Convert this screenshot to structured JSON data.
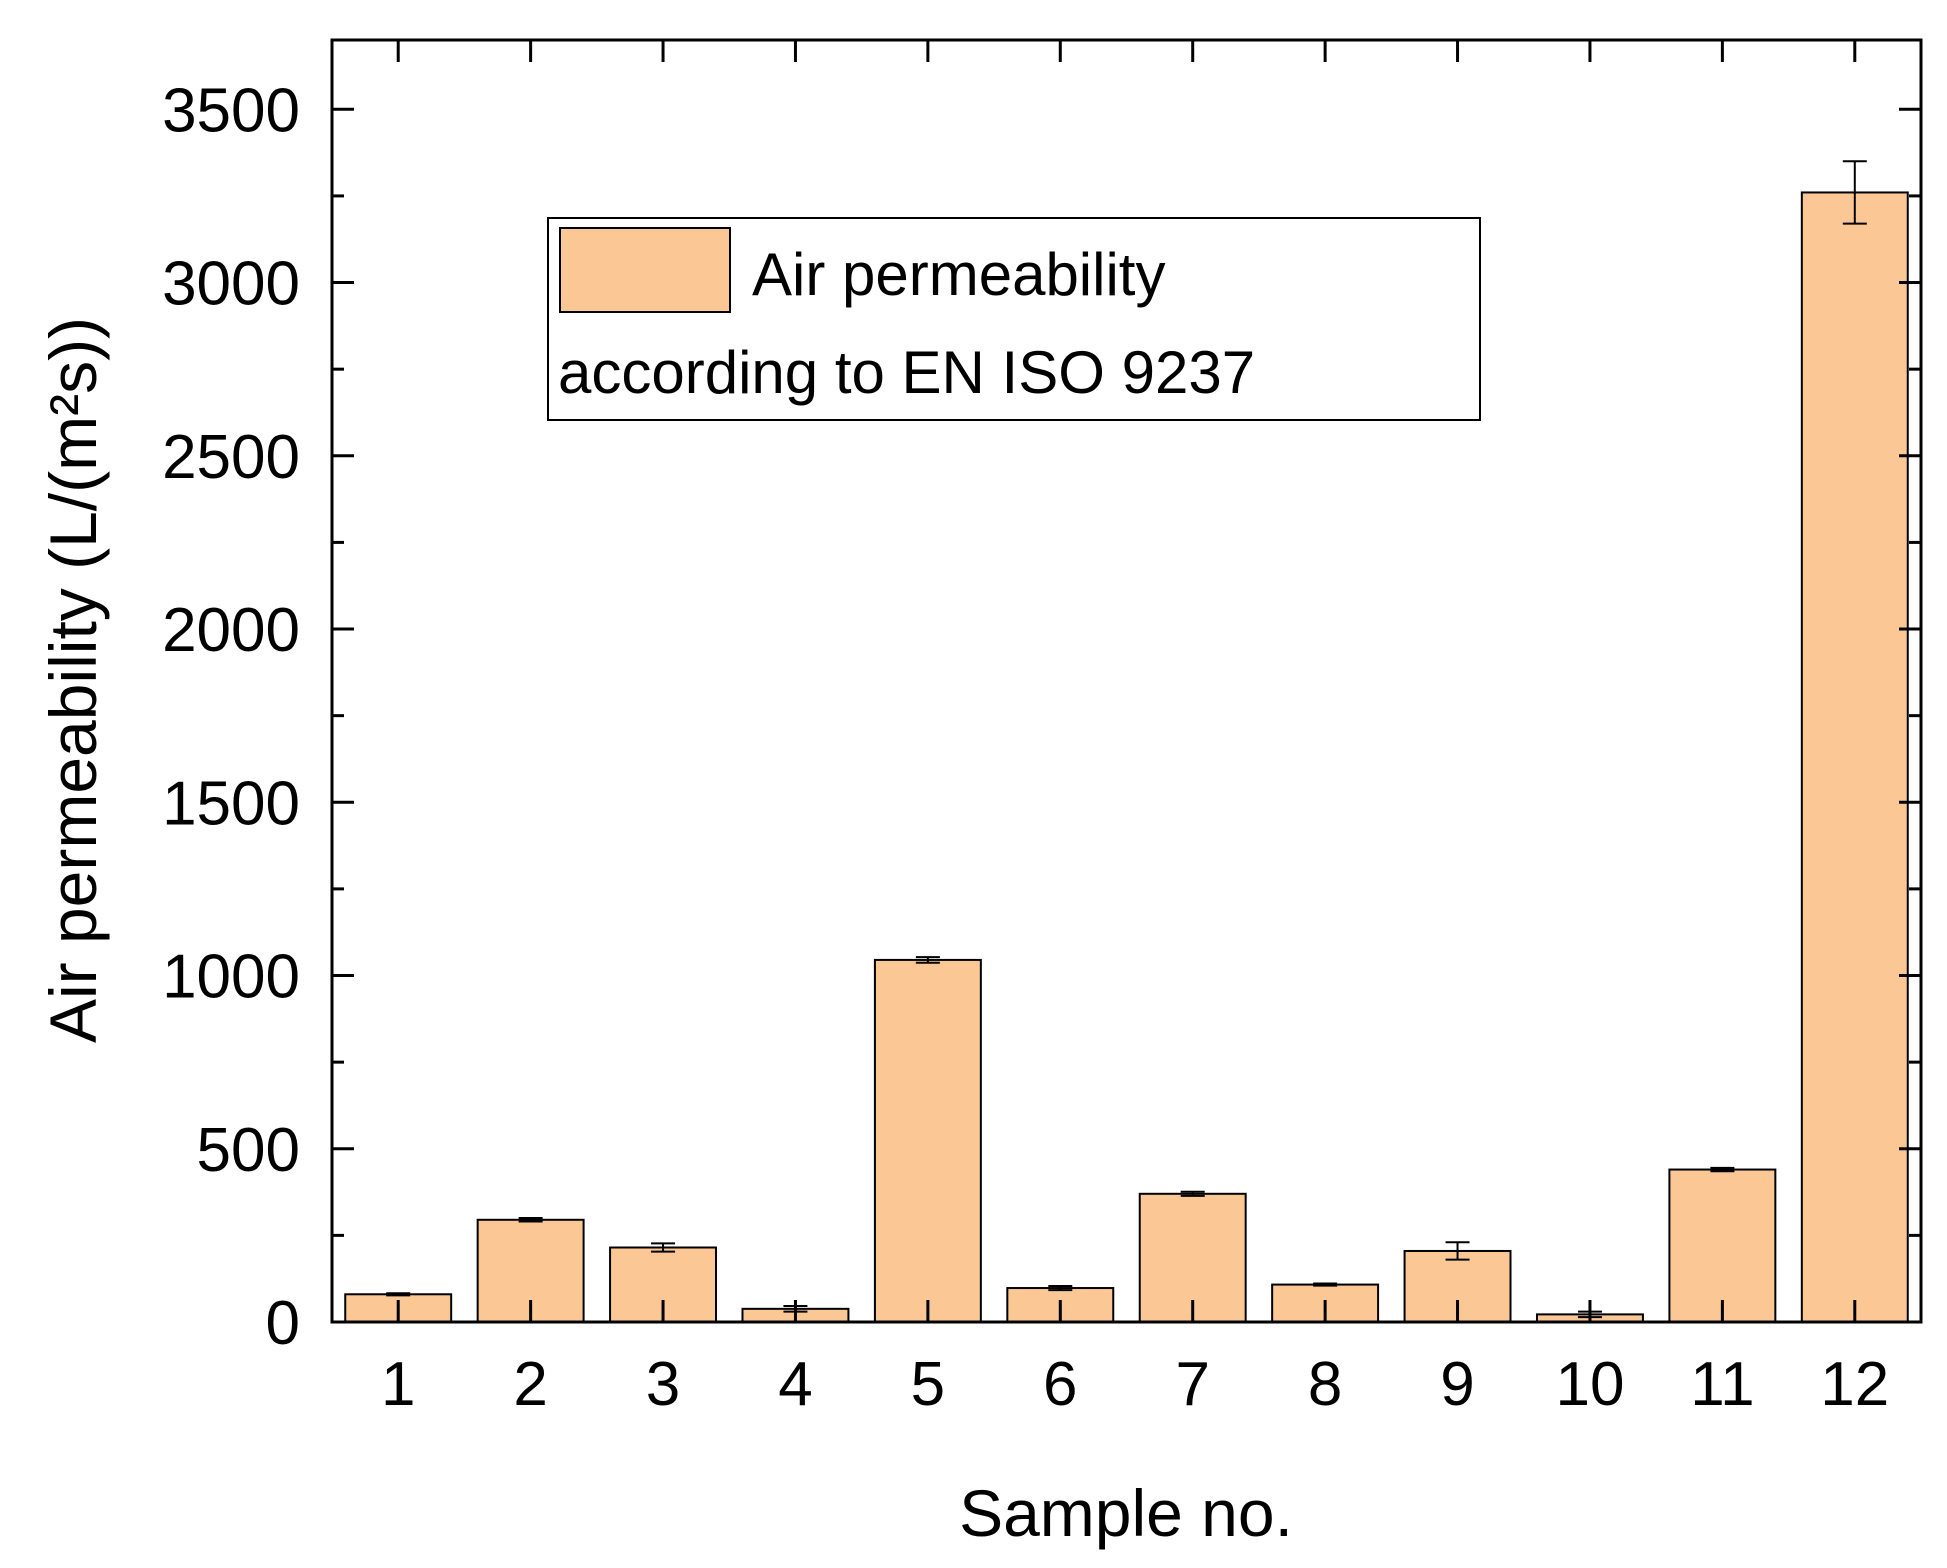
{
  "chart_data": {
    "type": "bar",
    "title": "",
    "xlabel": "Sample no.",
    "ylabel": "Air permeability (L/(m²s))",
    "categories": [
      "1",
      "2",
      "3",
      "4",
      "5",
      "6",
      "7",
      "8",
      "9",
      "10",
      "11",
      "12"
    ],
    "series": [
      {
        "name": "Air permeability according to EN ISO 9237",
        "values": [
          80,
          295,
          215,
          38,
          1045,
          98,
          370,
          108,
          205,
          22,
          440,
          3260
        ],
        "errors": [
          3,
          5,
          12,
          8,
          8,
          6,
          6,
          3,
          25,
          8,
          5,
          90
        ]
      }
    ],
    "legend": {
      "line1": "Air permeability",
      "line2": "according to EN ISO 9237",
      "position": "top-left"
    },
    "ylim": [
      0,
      3700
    ],
    "yticks": [
      "0",
      "500",
      "1000",
      "1500",
      "2000",
      "2500",
      "3000",
      "3500"
    ],
    "grid": false,
    "colors": {
      "bar_fill": "#fbc895",
      "bar_edge": "#000000",
      "axis": "#000000"
    }
  }
}
